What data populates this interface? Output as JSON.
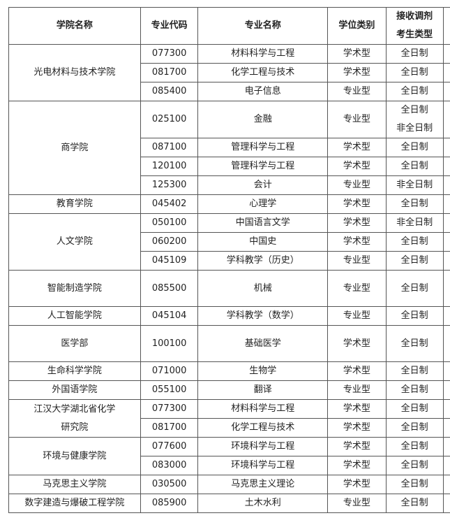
{
  "headers": [
    "学院名称",
    "专业代码",
    "专业名称",
    "学位类别",
    "接收调剂\n考生类型"
  ],
  "groups": [
    {
      "college": "光电材料与技术学院",
      "rows": [
        {
          "code": "077300",
          "major": "材料科学与工程",
          "degree": "学术型",
          "type": "全日制"
        },
        {
          "code": "081700",
          "major": "化学工程与技术",
          "degree": "学术型",
          "type": "全日制"
        },
        {
          "code": "085400",
          "major": "电子信息",
          "degree": "专业型",
          "type": "全日制"
        }
      ]
    },
    {
      "college": "商学院",
      "rows": [
        {
          "code": "025100",
          "major": "金融",
          "degree": "专业型",
          "type": "全日制\n非全日制"
        },
        {
          "code": "087100",
          "major": "管理科学与工程",
          "degree": "学术型",
          "type": "全日制"
        },
        {
          "code": "120100",
          "major": "管理科学与工程",
          "degree": "学术型",
          "type": "全日制"
        },
        {
          "code": "125300",
          "major": "会计",
          "degree": "专业型",
          "type": "非全日制"
        }
      ]
    },
    {
      "college": "教育学院",
      "rows": [
        {
          "code": "045402",
          "major": "心理学",
          "degree": "学术型",
          "type": "全日制"
        }
      ]
    },
    {
      "college": "人文学院",
      "rows": [
        {
          "code": "050100",
          "major": "中国语言文学",
          "degree": "学术型",
          "type": "非全日制"
        },
        {
          "code": "060200",
          "major": "中国史",
          "degree": "学术型",
          "type": "全日制"
        },
        {
          "code": "045109",
          "major": "学科教学（历史）",
          "degree": "专业型",
          "type": "全日制"
        }
      ]
    },
    {
      "college": "智能制造学院",
      "rows": [
        {
          "code": "085500",
          "major": "机械",
          "degree": "专业型",
          "type": "全日制",
          "tall": true
        }
      ]
    },
    {
      "college": "人工智能学院",
      "rows": [
        {
          "code": "045104",
          "major": "学科教学（数学）",
          "degree": "专业型",
          "type": "全日制"
        }
      ]
    },
    {
      "college": "医学部",
      "rows": [
        {
          "code": "100100",
          "major": "基础医学",
          "degree": "学术型",
          "type": "全日制",
          "tall": true
        }
      ]
    },
    {
      "college": "生命科学学院",
      "rows": [
        {
          "code": "071000",
          "major": "生物学",
          "degree": "学术型",
          "type": "全日制"
        }
      ]
    },
    {
      "college": "外国语学院",
      "rows": [
        {
          "code": "055100",
          "major": "翻译",
          "degree": "专业型",
          "type": "全日制"
        }
      ]
    },
    {
      "college": "江汉大学湖北省化学\n研究院",
      "rows": [
        {
          "code": "077300",
          "major": "材料科学与工程",
          "degree": "学术型",
          "type": "全日制"
        },
        {
          "code": "081700",
          "major": "化学工程与技术",
          "degree": "学术型",
          "type": "全日制"
        }
      ]
    },
    {
      "college": "环境与健康学院",
      "rows": [
        {
          "code": "077600",
          "major": "环境科学与工程",
          "degree": "学术型",
          "type": "全日制"
        },
        {
          "code": "083000",
          "major": "环境科学与工程",
          "degree": "学术型",
          "type": "全日制"
        }
      ]
    },
    {
      "college": "马克思主义学院",
      "rows": [
        {
          "code": "030500",
          "major": "马克思主义理论",
          "degree": "学术型",
          "type": "全日制"
        }
      ]
    },
    {
      "college": "数字建造与爆破工程学院",
      "rows": [
        {
          "code": "085900",
          "major": "土木水利",
          "degree": "专业型",
          "type": "全日制"
        }
      ]
    }
  ]
}
